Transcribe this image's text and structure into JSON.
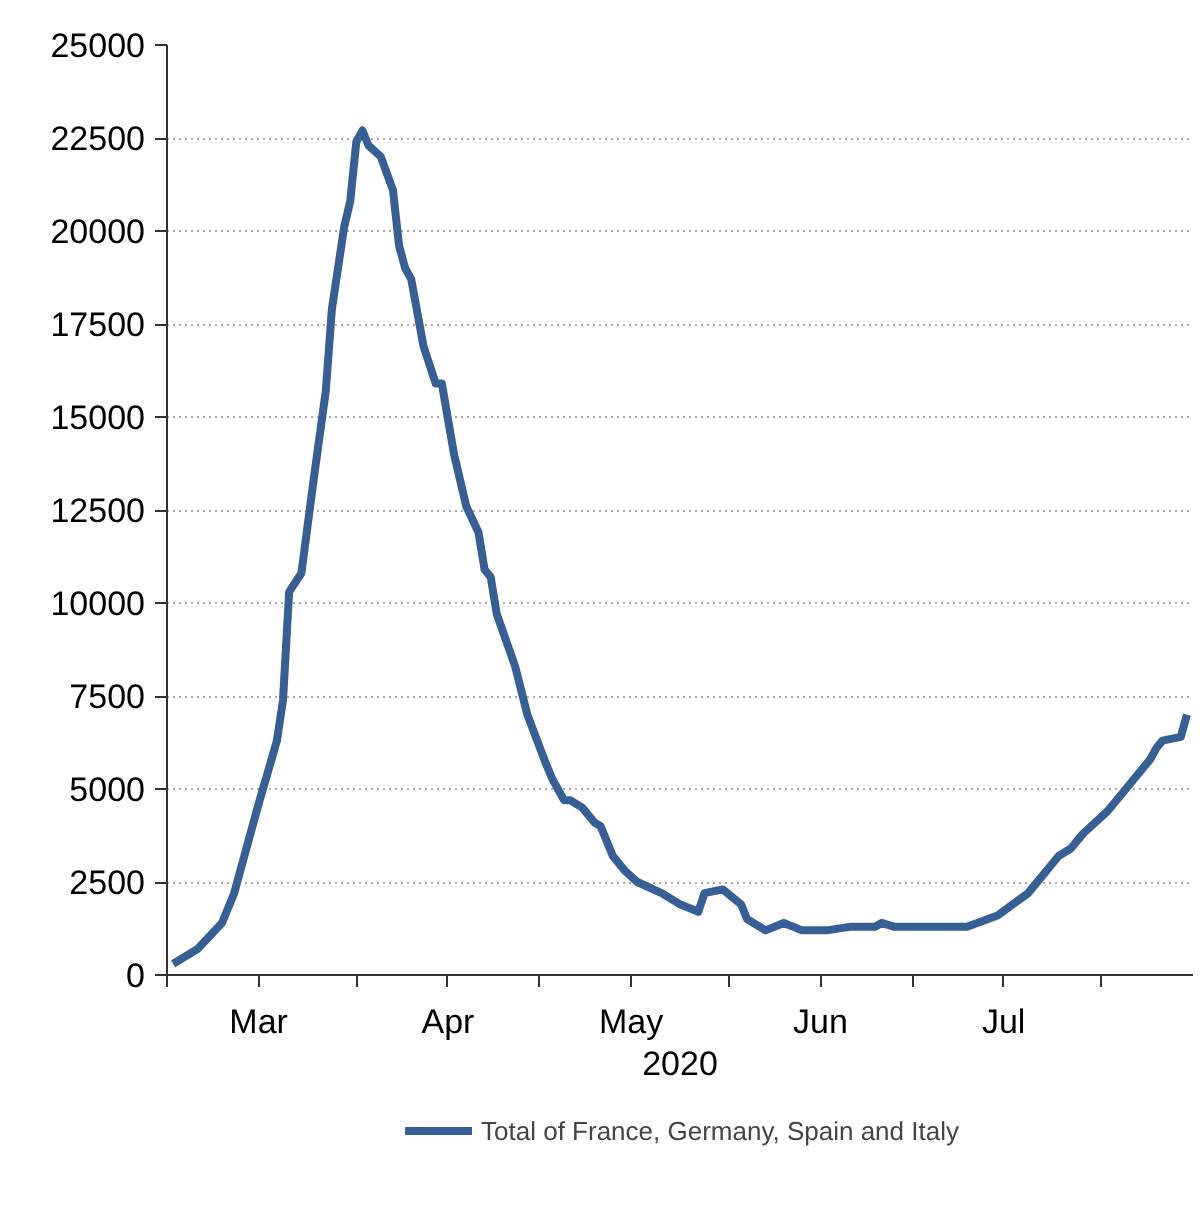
{
  "chart_data": {
    "type": "line",
    "xlabel": "2020",
    "x": [
      "2020-03-02",
      "2020-03-06",
      "2020-03-10",
      "2020-03-12",
      "2020-03-16",
      "2020-03-19",
      "2020-03-20",
      "2020-03-21",
      "2020-03-23",
      "2020-03-25",
      "2020-03-27",
      "2020-03-28",
      "2020-03-30",
      "2020-03-31",
      "2020-04-01",
      "2020-04-02",
      "2020-04-03",
      "2020-04-05",
      "2020-04-07",
      "2020-04-08",
      "2020-04-09",
      "2020-04-10",
      "2020-04-12",
      "2020-04-14",
      "2020-04-15",
      "2020-04-17",
      "2020-04-19",
      "2020-04-21",
      "2020-04-22",
      "2020-04-23",
      "2020-04-24",
      "2020-04-27",
      "2020-04-29",
      "2020-05-02",
      "2020-05-03",
      "2020-05-05",
      "2020-05-06",
      "2020-05-08",
      "2020-05-10",
      "2020-05-11",
      "2020-05-13",
      "2020-05-15",
      "2020-05-17",
      "2020-05-21",
      "2020-05-24",
      "2020-05-27",
      "2020-05-28",
      "2020-05-31",
      "2020-06-03",
      "2020-06-04",
      "2020-06-07",
      "2020-06-10",
      "2020-06-13",
      "2020-06-17",
      "2020-06-21",
      "2020-06-23",
      "2020-06-25",
      "2020-06-26",
      "2020-06-28",
      "2020-07-03",
      "2020-07-05",
      "2020-07-10",
      "2020-07-15",
      "2020-07-20",
      "2020-07-25",
      "2020-07-27",
      "2020-07-29",
      "2020-08-02",
      "2020-08-05",
      "2020-08-09",
      "2020-08-10",
      "2020-08-11",
      "2020-08-14",
      "2020-08-15"
    ],
    "series": [
      {
        "name": "Total of France, Germany, Spain and Italy",
        "color": "#355f95",
        "values": [
          300,
          700,
          1400,
          2200,
          4600,
          6300,
          7400,
          10300,
          10800,
          13300,
          15700,
          17900,
          20100,
          20800,
          22400,
          22700,
          22300,
          22000,
          21100,
          19600,
          19000,
          18700,
          16900,
          15900,
          15900,
          14000,
          12600,
          11900,
          10900,
          10700,
          9700,
          8300,
          7000,
          5700,
          5300,
          4700,
          4700,
          4500,
          4100,
          4000,
          3200,
          2800,
          2500,
          2200,
          1900,
          1700,
          2200,
          2300,
          1900,
          1500,
          1200,
          1400,
          1200,
          1200,
          1300,
          1300,
          1300,
          1400,
          1300,
          1300,
          1300,
          1300,
          1600,
          2200,
          3200,
          3400,
          3800,
          4400,
          5000,
          5800,
          6100,
          6300,
          6400,
          7000
        ]
      }
    ],
    "xlim": [
      "2020-03-01",
      "2020-08-16"
    ],
    "xticks": [
      {
        "value": "2020-03-01",
        "label": null
      },
      {
        "value": "2020-04-01",
        "label": null
      },
      {
        "value": "2020-05-01",
        "label": null
      },
      {
        "value": "2020-06-01",
        "label": null
      },
      {
        "value": "2020-07-01",
        "label": null
      },
      {
        "value": "2020-08-01",
        "label": null
      },
      {
        "value": "2020-03-16",
        "label": "Mar"
      },
      {
        "value": "2020-04-16",
        "label": "Apr"
      },
      {
        "value": "2020-05-16",
        "label": "May"
      },
      {
        "value": "2020-06-16",
        "label": "Jun"
      },
      {
        "value": "2020-07-16",
        "label": "Jul"
      }
    ],
    "ylim": [
      0,
      25000
    ],
    "yticks": [
      0,
      2500,
      5000,
      7500,
      10000,
      12500,
      15000,
      17500,
      20000,
      22500,
      25000
    ],
    "grid": "y",
    "legend": "bottom",
    "line_style": "solid",
    "marker": "none"
  }
}
